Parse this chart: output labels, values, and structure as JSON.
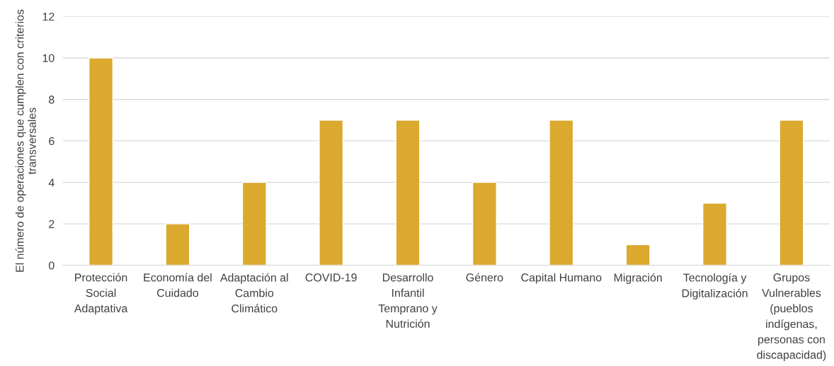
{
  "chart_data": {
    "type": "bar",
    "ylabel": "El número de operaciones que cumplen con criterios transversales",
    "categories": [
      "Protección Social Adaptativa",
      "Economía del Cuidado",
      "Adaptación al Cambio Climático",
      "COVID-19",
      "Desarrollo Infantil Temprano y Nutrición",
      "Género",
      "Capital Humano",
      "Migración",
      "Tecnología y Digitalización",
      "Grupos Vulnerables (pueblos indígenas, personas con discapacidad)"
    ],
    "values": [
      10,
      2,
      4,
      7,
      7,
      4,
      7,
      1,
      3,
      7
    ],
    "color": "#daa92e",
    "ylim": [
      0,
      12
    ],
    "yticks": [
      0,
      2,
      4,
      6,
      8,
      10,
      12
    ],
    "grid": "y"
  }
}
